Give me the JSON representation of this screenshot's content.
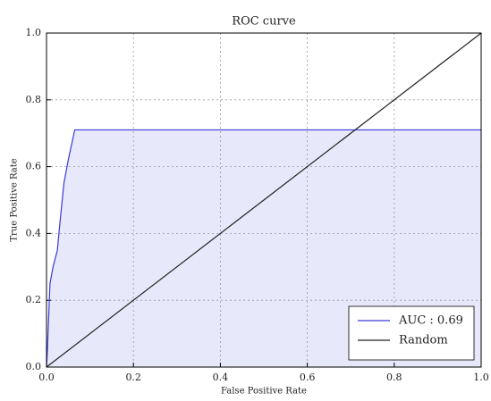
{
  "chart_data": {
    "type": "line",
    "title": "ROC curve",
    "x_label": "False Positive Rate",
    "y_label": "True Positive Rate",
    "xlim": [
      0,
      1
    ],
    "ylim": [
      0,
      1
    ],
    "xticks": [
      {
        "value": 0,
        "label": "0.0"
      },
      0.2,
      0.4,
      0.6,
      0.8,
      {
        "value": 1,
        "label": "1.0"
      }
    ],
    "yticks": [
      {
        "value": 0,
        "label": "0.0"
      },
      0.2,
      0.4,
      0.6,
      0.8,
      {
        "value": 1,
        "label": "1.0"
      }
    ],
    "grid": true,
    "legend": "lower right",
    "series": [
      {
        "name": "AUC : 0.69",
        "color": "#3a3adb",
        "fill": "#e8e8fb",
        "x": [
          0,
          0.002,
          0.005,
          0.008,
          0.015,
          0.025,
          0.03,
          0.04,
          0.05,
          0.06,
          0.065,
          1
        ],
        "values": [
          0,
          0.05,
          0.15,
          0.25,
          0.3,
          0.35,
          0.42,
          0.55,
          0.62,
          0.68,
          0.71,
          0.71
        ]
      },
      {
        "name": "Random",
        "color": "#222222",
        "x": [
          0,
          1
        ],
        "values": [
          0,
          1
        ]
      }
    ]
  }
}
